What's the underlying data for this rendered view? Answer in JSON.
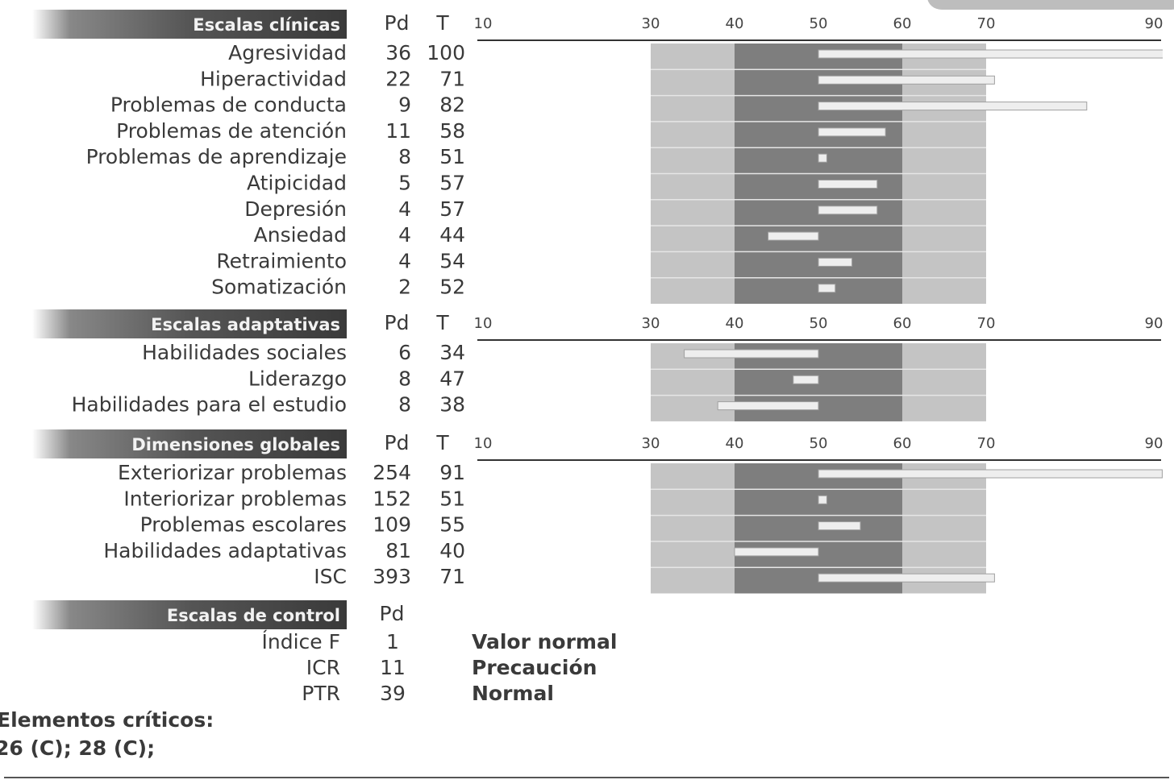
{
  "sections": [
    {
      "title": "Escalas clínicas",
      "pd_label": "Pd",
      "t_label": "T",
      "ticks": [
        10,
        30,
        40,
        50,
        60,
        70,
        90
      ],
      "rows": [
        {
          "name": "Agresividad",
          "pd": 36,
          "t": 100
        },
        {
          "name": "Hiperactividad",
          "pd": 22,
          "t": 71
        },
        {
          "name": "Problemas de conducta",
          "pd": 9,
          "t": 82
        },
        {
          "name": "Problemas de atención",
          "pd": 11,
          "t": 58
        },
        {
          "name": "Problemas de aprendizaje",
          "pd": 8,
          "t": 51
        },
        {
          "name": "Atipicidad",
          "pd": 5,
          "t": 57
        },
        {
          "name": "Depresión",
          "pd": 4,
          "t": 57
        },
        {
          "name": "Ansiedad",
          "pd": 4,
          "t": 44
        },
        {
          "name": "Retraimiento",
          "pd": 4,
          "t": 54
        },
        {
          "name": "Somatización",
          "pd": 2,
          "t": 52
        }
      ]
    },
    {
      "title": "Escalas adaptativas",
      "pd_label": "Pd",
      "t_label": "T",
      "ticks": [
        10,
        30,
        40,
        50,
        60,
        70,
        90
      ],
      "rows": [
        {
          "name": "Habilidades sociales",
          "pd": 6,
          "t": 34
        },
        {
          "name": "Liderazgo",
          "pd": 8,
          "t": 47
        },
        {
          "name": "Habilidades para el estudio",
          "pd": 8,
          "t": 38
        }
      ]
    },
    {
      "title": "Dimensiones globales",
      "pd_label": "Pd",
      "t_label": "T",
      "ticks": [
        10,
        30,
        40,
        50,
        60,
        70,
        90
      ],
      "rows": [
        {
          "name": "Exteriorizar problemas",
          "pd": 254,
          "t": 91
        },
        {
          "name": "Interiorizar problemas",
          "pd": 152,
          "t": 51
        },
        {
          "name": "Problemas escolares",
          "pd": 109,
          "t": 55
        },
        {
          "name": "Habilidades adaptativas",
          "pd": 81,
          "t": 40
        },
        {
          "name": "ISC",
          "pd": 393,
          "t": 71
        }
      ]
    }
  ],
  "control": {
    "title": "Escalas de control",
    "pd_label": "Pd",
    "rows": [
      {
        "name": "Índice F",
        "pd": 1,
        "status": "Valor normal"
      },
      {
        "name": "ICR",
        "pd": 11,
        "status": "Precaución"
      },
      {
        "name": "PTR",
        "pd": 39,
        "status": "Normal"
      }
    ]
  },
  "critical": {
    "title": "Elementos críticos:",
    "text": "26 (C); 28 (C);"
  }
}
